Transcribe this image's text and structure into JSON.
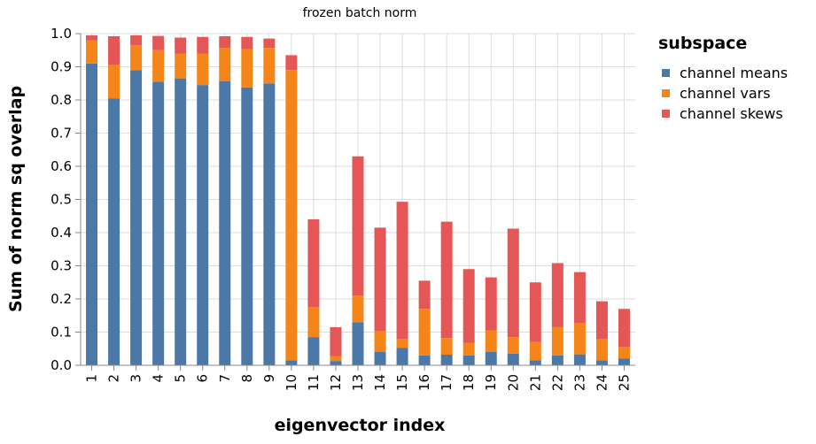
{
  "colors": {
    "channel_means": "#4c78a8",
    "channel_vars": "#f58518",
    "channel_skews": "#e45756",
    "grid": "#dddddd",
    "axis": "#888888"
  },
  "chart_data": {
    "type": "bar",
    "stacked": true,
    "title": "frozen batch norm",
    "xlabel": "eigenvector index",
    "ylabel": "Sum of norm sq overlap",
    "ylim": [
      0,
      1.0
    ],
    "yticks": [
      "0.0",
      "0.1",
      "0.2",
      "0.3",
      "0.4",
      "0.5",
      "0.6",
      "0.7",
      "0.8",
      "0.9",
      "1.0"
    ],
    "grid": true,
    "legend_title": "subspace",
    "legend_position": "right",
    "categories": [
      "1",
      "2",
      "3",
      "4",
      "5",
      "6",
      "7",
      "8",
      "9",
      "10",
      "11",
      "12",
      "13",
      "14",
      "15",
      "16",
      "17",
      "18",
      "19",
      "20",
      "21",
      "22",
      "23",
      "24",
      "25"
    ],
    "series": [
      {
        "name": "channel means",
        "values": [
          0.91,
          0.805,
          0.89,
          0.855,
          0.865,
          0.845,
          0.857,
          0.838,
          0.85,
          0.015,
          0.085,
          0.013,
          0.13,
          0.04,
          0.052,
          0.03,
          0.032,
          0.03,
          0.04,
          0.035,
          0.015,
          0.03,
          0.033,
          0.015,
          0.02
        ]
      },
      {
        "name": "channel vars",
        "values": [
          0.07,
          0.1,
          0.075,
          0.095,
          0.075,
          0.095,
          0.1,
          0.115,
          0.107,
          0.875,
          0.09,
          0.015,
          0.08,
          0.063,
          0.028,
          0.14,
          0.05,
          0.037,
          0.065,
          0.05,
          0.055,
          0.085,
          0.095,
          0.065,
          0.035
        ]
      },
      {
        "name": "channel skews",
        "values": [
          0.015,
          0.087,
          0.03,
          0.043,
          0.048,
          0.05,
          0.035,
          0.037,
          0.028,
          0.045,
          0.265,
          0.087,
          0.42,
          0.312,
          0.413,
          0.085,
          0.351,
          0.223,
          0.16,
          0.327,
          0.18,
          0.193,
          0.153,
          0.113,
          0.115
        ]
      }
    ]
  }
}
